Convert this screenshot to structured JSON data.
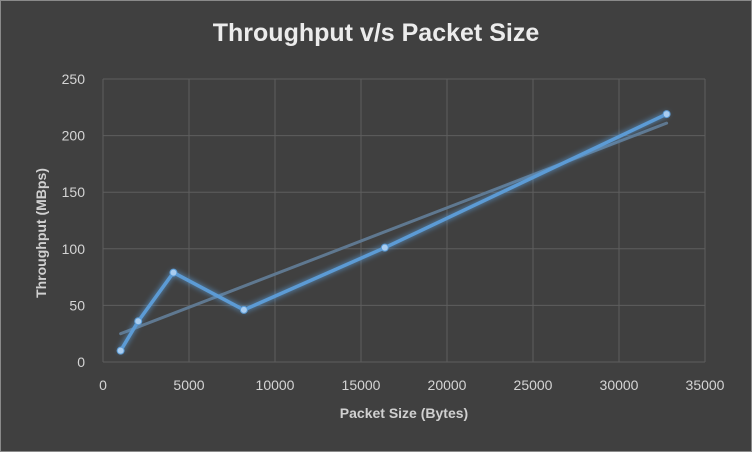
{
  "chart_data": {
    "type": "line",
    "title": "Throughput v/s Packet Size",
    "xlabel": "Packet Size (Bytes)",
    "ylabel": "Throughput (MBps)",
    "xlim": [
      0,
      35000
    ],
    "ylim": [
      0,
      250
    ],
    "xticks": [
      "0",
      "5000",
      "10000",
      "15000",
      "20000",
      "25000",
      "30000",
      "35000"
    ],
    "yticks": [
      "0",
      "50",
      "100",
      "150",
      "200",
      "250"
    ],
    "grid": true,
    "legend": "none",
    "series": [
      {
        "x": [
          1024,
          2048,
          4096,
          8192,
          16384,
          32768
        ],
        "values": [
          10,
          36,
          79,
          46,
          101,
          219
        ],
        "color": "#5b9bd5"
      }
    ],
    "trendline": {
      "type": "linear",
      "x": [
        1024,
        32768
      ],
      "values": [
        25,
        211
      ],
      "color": "#5f7890"
    }
  }
}
